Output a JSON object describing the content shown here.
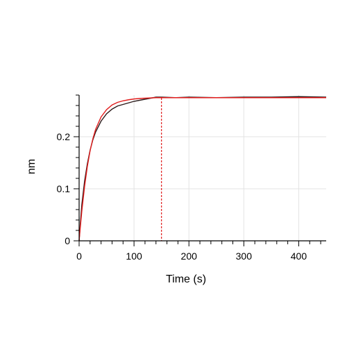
{
  "chart_data": {
    "type": "line",
    "title": "",
    "xlabel": "Time (s)",
    "ylabel": "nm",
    "xlim": [
      0,
      450
    ],
    "ylim": [
      0,
      0.28
    ],
    "xticks": [
      0,
      100,
      200,
      300,
      400
    ],
    "xtick_labels": [
      "0",
      "100",
      "200",
      "300",
      "400"
    ],
    "yticks": [
      0,
      0.1,
      0.2
    ],
    "ytick_labels": [
      "0",
      "0.1",
      "0.2"
    ],
    "grid": true,
    "legend": "none",
    "series": [
      {
        "color": "#2b1a1a",
        "x": [
          0,
          2,
          5,
          10,
          15,
          20,
          25,
          30,
          40,
          50,
          60,
          70,
          80,
          90,
          100,
          110,
          120,
          130,
          140,
          150,
          175,
          200,
          250,
          300,
          350,
          400,
          450
        ],
        "y": [
          0,
          0.03,
          0.07,
          0.115,
          0.148,
          0.174,
          0.194,
          0.209,
          0.23,
          0.244,
          0.253,
          0.259,
          0.262,
          0.265,
          0.268,
          0.27,
          0.272,
          0.274,
          0.276,
          0.276,
          0.275,
          0.276,
          0.275,
          0.276,
          0.276,
          0.277,
          0.276
        ]
      },
      {
        "color": "#e11b1b",
        "x": [
          0,
          2,
          5,
          10,
          15,
          20,
          25,
          30,
          40,
          50,
          60,
          70,
          80,
          90,
          100,
          110,
          120,
          130,
          140,
          150,
          175,
          200,
          250,
          300,
          350,
          400,
          450
        ],
        "y": [
          0,
          0.024,
          0.058,
          0.105,
          0.143,
          0.173,
          0.196,
          0.214,
          0.238,
          0.252,
          0.261,
          0.266,
          0.269,
          0.271,
          0.2725,
          0.2735,
          0.274,
          0.2745,
          0.275,
          0.275,
          0.275,
          0.275,
          0.275,
          0.275,
          0.275,
          0.275,
          0.275
        ]
      }
    ],
    "vline": {
      "x": 150,
      "color": "#e11b1b"
    }
  }
}
